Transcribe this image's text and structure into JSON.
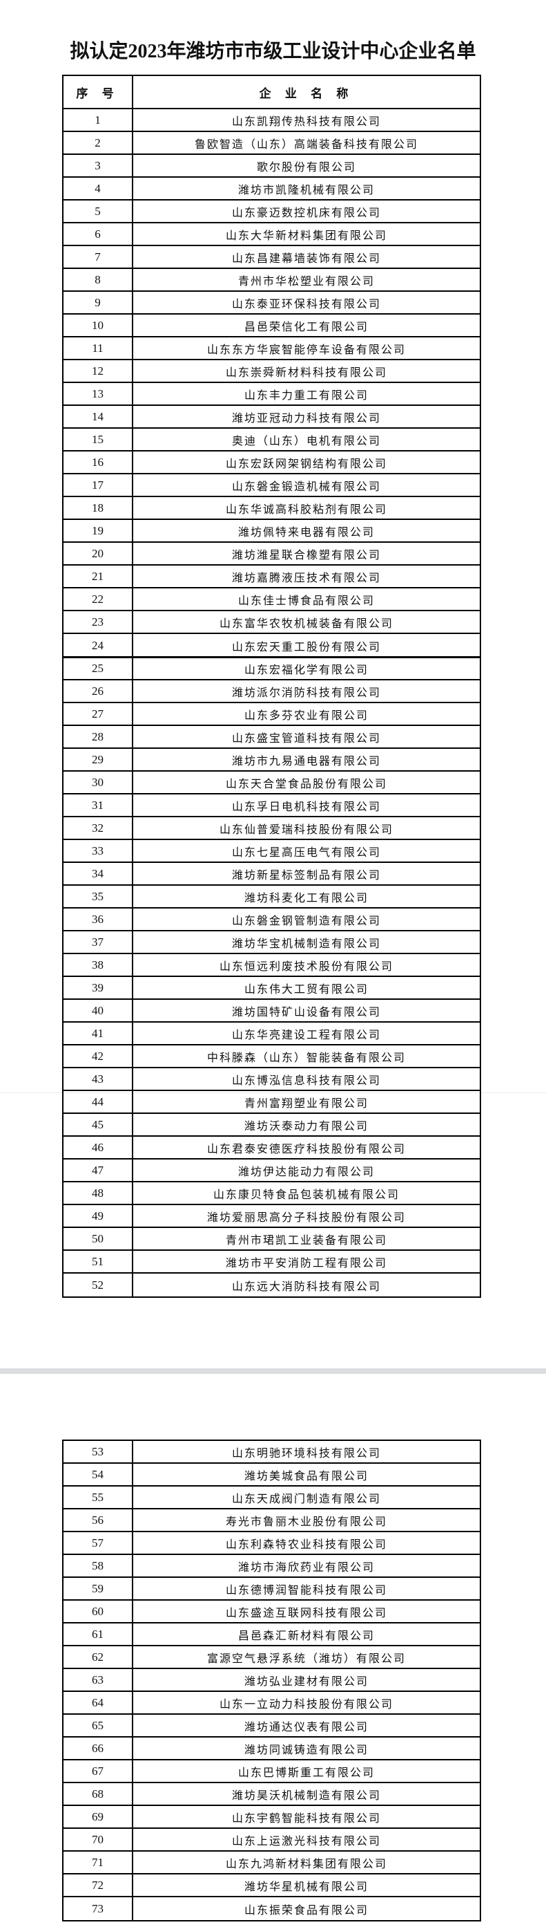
{
  "title": "拟认定2023年潍坊市市级工业设计中心企业名单",
  "header": {
    "no": "序 号",
    "name": "企 业 名 称"
  },
  "rows": [
    [
      "1",
      "山东凯翔传热科技有限公司"
    ],
    [
      "2",
      "鲁欧智造（山东）高端装备科技有限公司"
    ],
    [
      "3",
      "歌尔股份有限公司"
    ],
    [
      "4",
      "潍坊市凯隆机械有限公司"
    ],
    [
      "5",
      "山东豪迈数控机床有限公司"
    ],
    [
      "6",
      "山东大华新材料集团有限公司"
    ],
    [
      "7",
      "山东昌建幕墙装饰有限公司"
    ],
    [
      "8",
      "青州市华松塑业有限公司"
    ],
    [
      "9",
      "山东泰亚环保科技有限公司"
    ],
    [
      "10",
      "昌邑荣信化工有限公司"
    ],
    [
      "11",
      "山东东方华宸智能停车设备有限公司"
    ],
    [
      "12",
      "山东崇舜新材料科技有限公司"
    ],
    [
      "13",
      "山东丰力重工有限公司"
    ],
    [
      "14",
      "潍坊亚冠动力科技有限公司"
    ],
    [
      "15",
      "奥迪（山东）电机有限公司"
    ],
    [
      "16",
      "山东宏跃网架钢结构有限公司"
    ],
    [
      "17",
      "山东磐金锻造机械有限公司"
    ],
    [
      "18",
      "山东华诚高科胶粘剂有限公司"
    ],
    [
      "19",
      "潍坊佩特来电器有限公司"
    ],
    [
      "20",
      "潍坊潍星联合橡塑有限公司"
    ],
    [
      "21",
      "潍坊嘉腾液压技术有限公司"
    ],
    [
      "22",
      "山东佳士博食品有限公司"
    ],
    [
      "23",
      "山东富华农牧机械装备有限公司"
    ],
    [
      "24",
      "山东宏天重工股份有限公司"
    ],
    [
      "25",
      "山东宏福化学有限公司"
    ],
    [
      "26",
      "潍坊派尔消防科技有限公司"
    ],
    [
      "27",
      "山东多芬农业有限公司"
    ],
    [
      "28",
      "山东盛宝管道科技有限公司"
    ],
    [
      "29",
      "潍坊市九易通电器有限公司"
    ],
    [
      "30",
      "山东天合堂食品股份有限公司"
    ],
    [
      "31",
      "山东孚日电机科技有限公司"
    ],
    [
      "32",
      "山东仙普爱瑞科技股份有限公司"
    ],
    [
      "33",
      "山东七星高压电气有限公司"
    ],
    [
      "34",
      "潍坊新星标签制品有限公司"
    ],
    [
      "35",
      "潍坊科麦化工有限公司"
    ],
    [
      "36",
      "山东磐金钢管制造有限公司"
    ],
    [
      "37",
      "潍坊华宝机械制造有限公司"
    ],
    [
      "38",
      "山东恒远利废技术股份有限公司"
    ],
    [
      "39",
      "山东伟大工贸有限公司"
    ],
    [
      "40",
      "潍坊国特矿山设备有限公司"
    ],
    [
      "41",
      "山东华亮建设工程有限公司"
    ],
    [
      "42",
      "中科滕森（山东）智能装备有限公司"
    ],
    [
      "43",
      "山东博泓信息科技有限公司"
    ],
    [
      "44",
      "青州富翔塑业有限公司"
    ],
    [
      "45",
      "潍坊沃泰动力有限公司"
    ],
    [
      "46",
      "山东君泰安德医疗科技股份有限公司"
    ],
    [
      "47",
      "潍坊伊达能动力有限公司"
    ],
    [
      "48",
      "山东康贝特食品包装机械有限公司"
    ],
    [
      "49",
      "潍坊爱丽思高分子科技股份有限公司"
    ],
    [
      "50",
      "青州市珺凯工业装备有限公司"
    ],
    [
      "51",
      "潍坊市平安消防工程有限公司"
    ],
    [
      "52",
      "山东远大消防科技有限公司"
    ],
    [
      "53",
      "山东明驰环境科技有限公司"
    ],
    [
      "54",
      "潍坊美城食品有限公司"
    ],
    [
      "55",
      "山东天成阀门制造有限公司"
    ],
    [
      "56",
      "寿光市鲁丽木业股份有限公司"
    ],
    [
      "57",
      "山东利森特农业科技有限公司"
    ],
    [
      "58",
      "潍坊市海欣药业有限公司"
    ],
    [
      "59",
      "山东德博润智能科技有限公司"
    ],
    [
      "60",
      "山东盛途互联网科技有限公司"
    ],
    [
      "61",
      "昌邑森汇新材料有限公司"
    ],
    [
      "62",
      "富源空气悬浮系统（潍坊）有限公司"
    ],
    [
      "63",
      "潍坊弘业建材有限公司"
    ],
    [
      "64",
      "山东一立动力科技股份有限公司"
    ],
    [
      "65",
      "潍坊通达仪表有限公司"
    ],
    [
      "66",
      "潍坊同诚铸造有限公司"
    ],
    [
      "67",
      "山东巴博斯重工有限公司"
    ],
    [
      "68",
      "潍坊昊沃机械制造有限公司"
    ],
    [
      "69",
      "山东宇鹤智能科技有限公司"
    ],
    [
      "70",
      "山东上运激光科技有限公司"
    ],
    [
      "71",
      "山东九鸿新材料集团有限公司"
    ],
    [
      "72",
      "潍坊华星机械有限公司"
    ],
    [
      "73",
      "山东振荣食品有限公司"
    ]
  ]
}
